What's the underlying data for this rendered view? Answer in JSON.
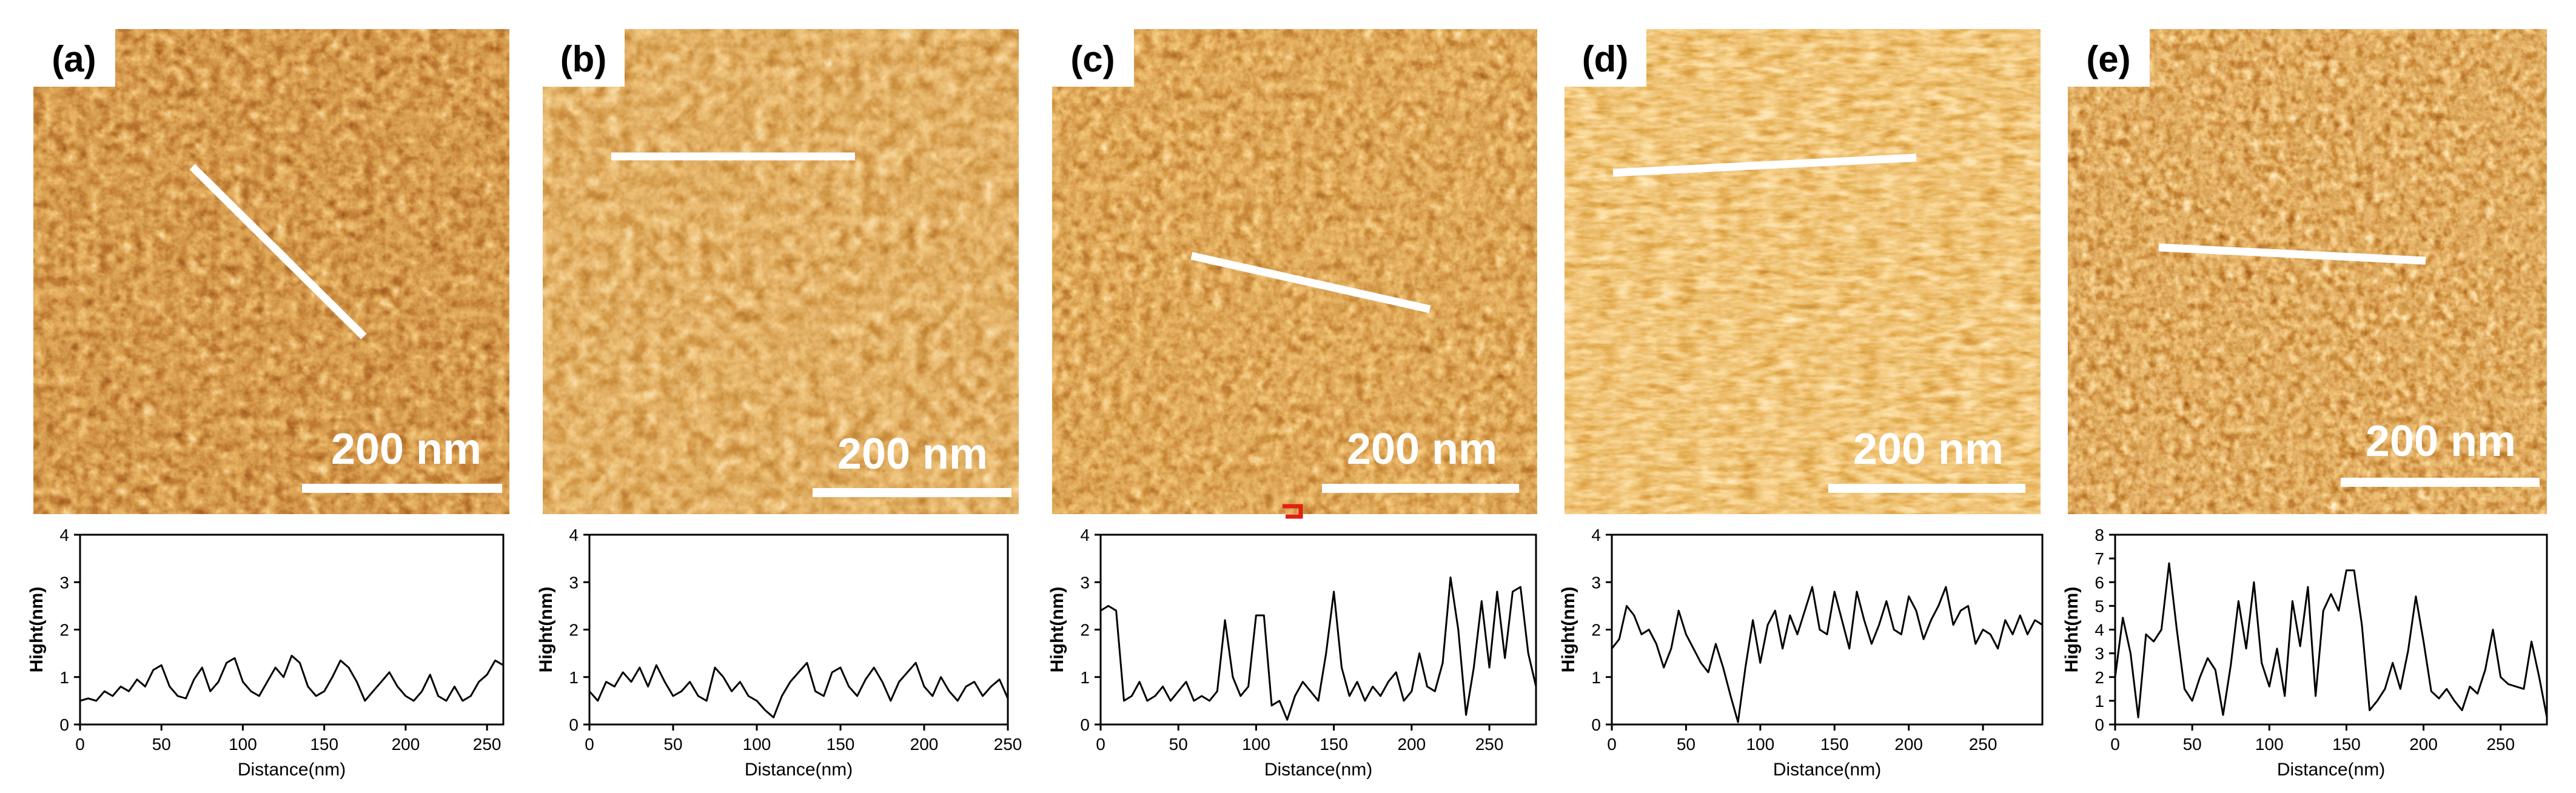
{
  "panels": [
    {
      "label": "(a)",
      "scale_bar": "200 nm"
    },
    {
      "label": "(b)",
      "scale_bar": "200 nm"
    },
    {
      "label": "(c)",
      "scale_bar": "200 nm"
    },
    {
      "label": "(d)",
      "scale_bar": "200 nm"
    },
    {
      "label": "(e)",
      "scale_bar": "200 nm"
    }
  ],
  "colors": {
    "afm_dark": "#3a0800",
    "afm_mid": "#a8400a",
    "afm_light": "#f0c070",
    "afm_bright": "#fff4d8",
    "line": "#000000",
    "profile_line": "#ffffff",
    "marker": "#e02010"
  },
  "chart_data": [
    {
      "type": "line",
      "panel": "(a)",
      "xlabel": "Distance(nm)",
      "ylabel": "Hight(nm)",
      "xlim": [
        0,
        260
      ],
      "ylim": [
        0,
        4
      ],
      "xticks": [
        0,
        50,
        100,
        150,
        200,
        250
      ],
      "yticks": [
        0,
        1,
        2,
        3,
        4
      ],
      "x": [
        0,
        5,
        10,
        15,
        20,
        25,
        30,
        35,
        40,
        45,
        50,
        55,
        60,
        65,
        70,
        75,
        80,
        85,
        90,
        95,
        100,
        105,
        110,
        115,
        120,
        125,
        130,
        135,
        140,
        145,
        150,
        155,
        160,
        165,
        170,
        175,
        180,
        185,
        190,
        195,
        200,
        205,
        210,
        215,
        220,
        225,
        230,
        235,
        240,
        245,
        250,
        255,
        260
      ],
      "y": [
        0.5,
        0.55,
        0.5,
        0.7,
        0.6,
        0.8,
        0.7,
        0.95,
        0.8,
        1.15,
        1.25,
        0.8,
        0.6,
        0.55,
        0.95,
        1.2,
        0.7,
        0.9,
        1.3,
        1.4,
        0.9,
        0.7,
        0.6,
        0.9,
        1.2,
        1.0,
        1.45,
        1.3,
        0.8,
        0.6,
        0.7,
        1.0,
        1.35,
        1.2,
        0.9,
        0.5,
        0.7,
        0.9,
        1.1,
        0.8,
        0.6,
        0.5,
        0.7,
        1.05,
        0.6,
        0.5,
        0.8,
        0.5,
        0.6,
        0.9,
        1.05,
        1.35,
        1.25
      ]
    },
    {
      "type": "line",
      "panel": "(b)",
      "xlabel": "Distance(nm)",
      "ylabel": "Hight(nm)",
      "xlim": [
        0,
        250
      ],
      "ylim": [
        0,
        4
      ],
      "xticks": [
        0,
        50,
        100,
        150,
        200,
        250
      ],
      "yticks": [
        0,
        1,
        2,
        3,
        4
      ],
      "x": [
        0,
        5,
        10,
        15,
        20,
        25,
        30,
        35,
        40,
        45,
        50,
        55,
        60,
        65,
        70,
        75,
        80,
        85,
        90,
        95,
        100,
        105,
        110,
        115,
        120,
        125,
        130,
        135,
        140,
        145,
        150,
        155,
        160,
        165,
        170,
        175,
        180,
        185,
        190,
        195,
        200,
        205,
        210,
        215,
        220,
        225,
        230,
        235,
        240,
        245,
        250
      ],
      "y": [
        0.7,
        0.5,
        0.9,
        0.8,
        1.1,
        0.9,
        1.2,
        0.8,
        1.25,
        0.9,
        0.6,
        0.7,
        0.9,
        0.6,
        0.5,
        1.2,
        1.0,
        0.7,
        0.9,
        0.6,
        0.5,
        0.3,
        0.15,
        0.6,
        0.9,
        1.1,
        1.3,
        0.7,
        0.6,
        1.1,
        1.2,
        0.8,
        0.6,
        0.95,
        1.2,
        0.9,
        0.5,
        0.9,
        1.1,
        1.3,
        0.8,
        0.6,
        1.0,
        0.7,
        0.5,
        0.8,
        0.9,
        0.6,
        0.8,
        0.95,
        0.55
      ]
    },
    {
      "type": "line",
      "panel": "(c)",
      "xlabel": "Distance(nm)",
      "ylabel": "Hight(nm)",
      "xlim": [
        0,
        280
      ],
      "ylim": [
        0,
        4
      ],
      "xticks": [
        0,
        50,
        100,
        150,
        200,
        250
      ],
      "yticks": [
        0,
        1,
        2,
        3,
        4
      ],
      "x": [
        0,
        5,
        10,
        15,
        20,
        25,
        30,
        35,
        40,
        45,
        50,
        55,
        60,
        65,
        70,
        75,
        80,
        85,
        90,
        95,
        100,
        105,
        110,
        115,
        120,
        125,
        130,
        135,
        140,
        145,
        150,
        155,
        160,
        165,
        170,
        175,
        180,
        185,
        190,
        195,
        200,
        205,
        210,
        215,
        220,
        225,
        230,
        235,
        240,
        245,
        250,
        255,
        260,
        265,
        270,
        275,
        280
      ],
      "y": [
        2.4,
        2.5,
        2.4,
        0.5,
        0.6,
        0.9,
        0.5,
        0.6,
        0.8,
        0.5,
        0.7,
        0.9,
        0.5,
        0.6,
        0.5,
        0.7,
        2.2,
        1.0,
        0.6,
        0.8,
        2.3,
        2.3,
        0.4,
        0.5,
        0.1,
        0.6,
        0.9,
        0.7,
        0.5,
        1.5,
        2.8,
        1.2,
        0.6,
        0.9,
        0.5,
        0.8,
        0.6,
        0.9,
        1.1,
        0.5,
        0.7,
        1.5,
        0.8,
        0.7,
        1.3,
        3.1,
        2.0,
        0.2,
        1.2,
        2.6,
        1.2,
        2.8,
        1.4,
        2.8,
        2.9,
        1.5,
        0.8
      ]
    },
    {
      "type": "line",
      "panel": "(d)",
      "xlabel": "Distance(nm)",
      "ylabel": "Hight(nm)",
      "xlim": [
        0,
        290
      ],
      "ylim": [
        0,
        4
      ],
      "xticks": [
        0,
        50,
        100,
        150,
        200,
        250
      ],
      "yticks": [
        0,
        1,
        2,
        3,
        4
      ],
      "x": [
        0,
        5,
        10,
        15,
        20,
        25,
        30,
        35,
        40,
        45,
        50,
        55,
        60,
        65,
        70,
        75,
        80,
        85,
        90,
        95,
        100,
        105,
        110,
        115,
        120,
        125,
        130,
        135,
        140,
        145,
        150,
        155,
        160,
        165,
        170,
        175,
        180,
        185,
        190,
        195,
        200,
        205,
        210,
        215,
        220,
        225,
        230,
        235,
        240,
        245,
        250,
        255,
        260,
        265,
        270,
        275,
        280,
        285,
        290
      ],
      "y": [
        1.6,
        1.8,
        2.5,
        2.3,
        1.9,
        2.0,
        1.7,
        1.2,
        1.6,
        2.4,
        1.9,
        1.6,
        1.3,
        1.1,
        1.7,
        1.2,
        0.6,
        0.05,
        1.2,
        2.2,
        1.3,
        2.1,
        2.4,
        1.6,
        2.3,
        1.9,
        2.4,
        2.9,
        2.0,
        1.9,
        2.8,
        2.2,
        1.6,
        2.8,
        2.2,
        1.7,
        2.1,
        2.6,
        2.0,
        1.9,
        2.7,
        2.4,
        1.8,
        2.2,
        2.5,
        2.9,
        2.1,
        2.4,
        2.5,
        1.7,
        2.0,
        1.9,
        1.6,
        2.2,
        1.9,
        2.3,
        1.9,
        2.2,
        2.1
      ]
    },
    {
      "type": "line",
      "panel": "(e)",
      "xlabel": "Distance(nm)",
      "ylabel": "Hight(nm)",
      "xlim": [
        0,
        280
      ],
      "ylim": [
        0,
        8
      ],
      "xticks": [
        0,
        50,
        100,
        150,
        200,
        250
      ],
      "yticks": [
        0,
        1,
        2,
        3,
        4,
        5,
        6,
        7,
        8
      ],
      "x": [
        0,
        5,
        10,
        15,
        20,
        25,
        30,
        35,
        40,
        45,
        50,
        55,
        60,
        65,
        70,
        75,
        80,
        85,
        90,
        95,
        100,
        105,
        110,
        115,
        120,
        125,
        130,
        135,
        140,
        145,
        150,
        155,
        160,
        165,
        170,
        175,
        180,
        185,
        190,
        195,
        200,
        205,
        210,
        215,
        220,
        225,
        230,
        235,
        240,
        245,
        250,
        255,
        260,
        265,
        270,
        275,
        280
      ],
      "y": [
        2.0,
        4.5,
        3.0,
        0.3,
        3.8,
        3.5,
        4.0,
        6.8,
        4.0,
        1.5,
        1.0,
        2.0,
        2.8,
        2.3,
        0.4,
        2.5,
        5.2,
        3.2,
        6.0,
        2.6,
        1.6,
        3.2,
        1.2,
        5.2,
        3.3,
        5.8,
        1.2,
        4.8,
        5.5,
        4.8,
        6.5,
        6.5,
        4.2,
        0.6,
        1.0,
        1.5,
        2.6,
        1.5,
        3.1,
        5.4,
        3.5,
        1.4,
        1.1,
        1.5,
        1.0,
        0.6,
        1.6,
        1.3,
        2.3,
        4.0,
        2.0,
        1.7,
        1.6,
        1.5,
        3.5,
        2.0,
        0.3
      ]
    }
  ]
}
